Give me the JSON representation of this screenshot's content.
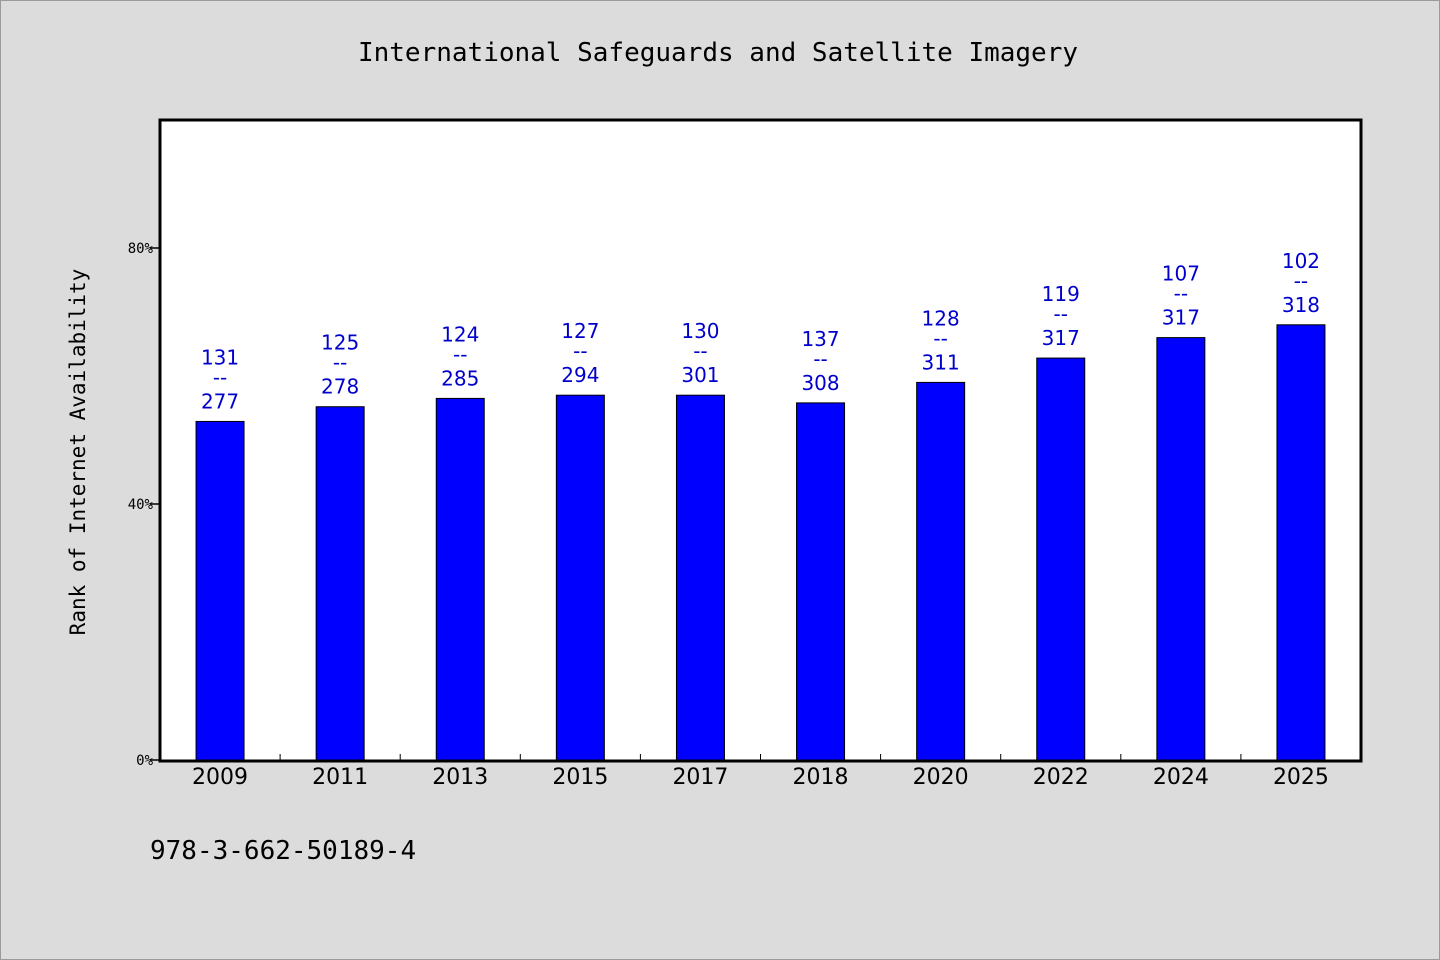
{
  "chart_data": {
    "type": "bar",
    "title": "International Safeguards and Satellite Imagery",
    "ylabel": "Rank of Internet Availability",
    "xlabel": "",
    "ylim": [
      0,
      100
    ],
    "yticks": [
      {
        "value": 0,
        "label": "0%"
      },
      {
        "value": 40,
        "label": "40%"
      },
      {
        "value": 80,
        "label": "80%"
      }
    ],
    "categories": [
      "2009",
      "2011",
      "2013",
      "2015",
      "2017",
      "2018",
      "2020",
      "2022",
      "2024",
      "2025"
    ],
    "values": [
      52.9,
      55.2,
      56.5,
      57.0,
      57.0,
      55.8,
      59.0,
      62.8,
      66.0,
      68.0
    ],
    "data_labels": [
      {
        "top": "131",
        "sep": "--",
        "bottom": "277"
      },
      {
        "top": "125",
        "sep": "--",
        "bottom": "278"
      },
      {
        "top": "124",
        "sep": "--",
        "bottom": "285"
      },
      {
        "top": "127",
        "sep": "--",
        "bottom": "294"
      },
      {
        "top": "130",
        "sep": "--",
        "bottom": "301"
      },
      {
        "top": "137",
        "sep": "--",
        "bottom": "308"
      },
      {
        "top": "128",
        "sep": "--",
        "bottom": "311"
      },
      {
        "top": "119",
        "sep": "--",
        "bottom": "317"
      },
      {
        "top": "107",
        "sep": "--",
        "bottom": "317"
      },
      {
        "top": "102",
        "sep": "--",
        "bottom": "318"
      }
    ],
    "colors": {
      "bar": "#0000ff",
      "label": "#0000cc",
      "background": "#dcdcdc",
      "plot": "#ffffff"
    },
    "grid": false
  },
  "footer": {
    "isbn": "978-3-662-50189-4"
  }
}
